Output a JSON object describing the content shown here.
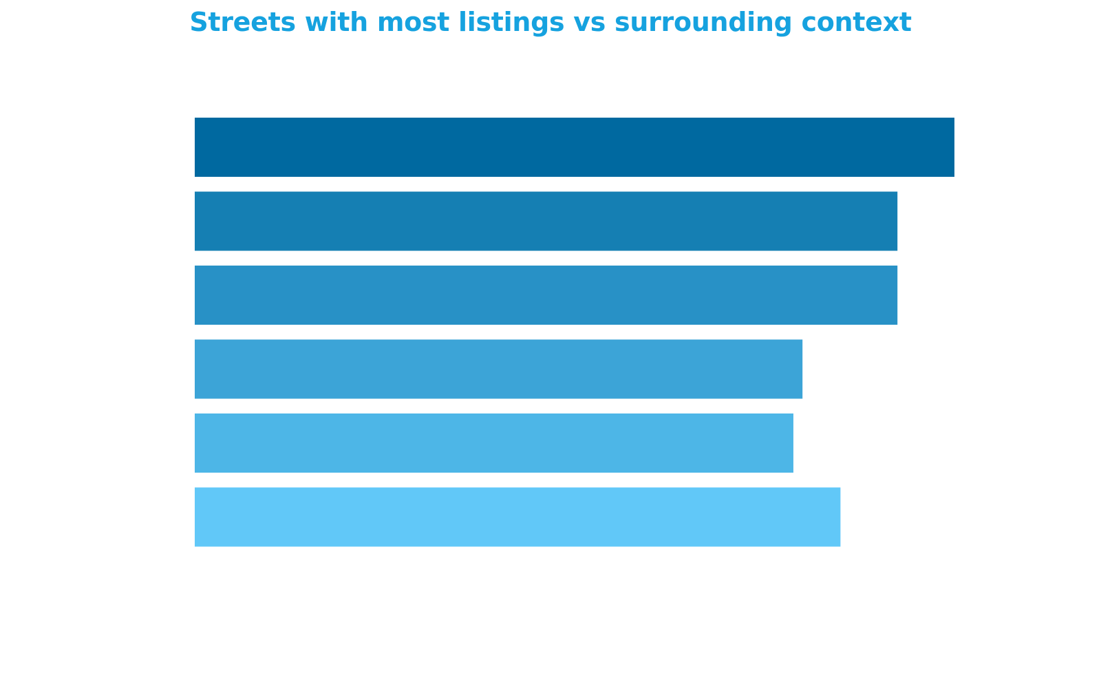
{
  "chart_data": {
    "type": "bar",
    "orientation": "horizontal",
    "title": "Streets with most listings vs surrounding context",
    "categories": [
      "",
      "",
      "",
      "",
      "",
      ""
    ],
    "values": [
      100,
      92.5,
      92.5,
      80,
      78.8,
      85
    ],
    "colors": [
      "#0069a0",
      "#157fb3",
      "#2891c6",
      "#3ca4d7",
      "#4db6e7",
      "#61c8f8"
    ],
    "xlim": [
      0,
      100
    ],
    "grid": false,
    "legend": "none"
  }
}
